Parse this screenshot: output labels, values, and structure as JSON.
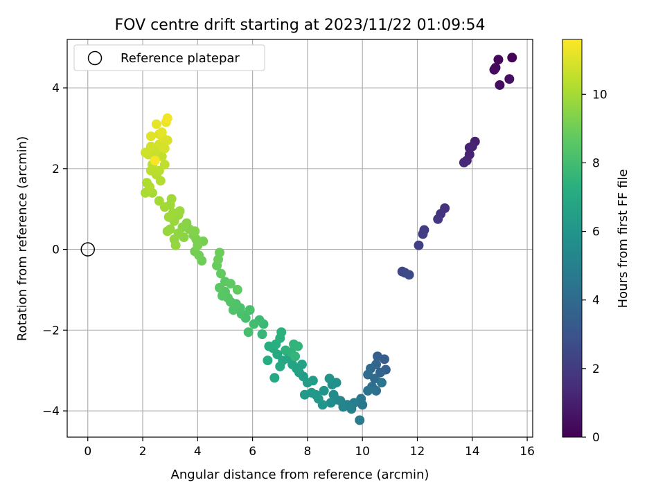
{
  "chart_data": {
    "type": "scatter",
    "title": "FOV centre drift starting at 2023/11/22 01:09:54",
    "xlabel": "Angular distance from reference (arcmin)",
    "ylabel": "Rotation from reference (arcmin)",
    "xlim": [
      -0.75,
      16.2
    ],
    "ylim": [
      -4.65,
      5.2
    ],
    "xticks": [
      0,
      2,
      4,
      6,
      8,
      10,
      12,
      14,
      16
    ],
    "yticks": [
      -4,
      -2,
      0,
      2,
      4
    ],
    "xtick_labels": [
      "0",
      "2",
      "4",
      "6",
      "8",
      "10",
      "12",
      "14",
      "16"
    ],
    "ytick_labels": [
      "−4",
      "−2",
      "0",
      "2",
      "4"
    ],
    "grid": true,
    "legend": {
      "position": "top-left",
      "entries": [
        "Reference platepar"
      ]
    },
    "reference_point": {
      "x": 0,
      "y": 0,
      "label": "Reference platepar"
    },
    "colorbar": {
      "label": "Hours from first FF file",
      "colormap": "viridis",
      "range": [
        0,
        11.6
      ],
      "ticks": [
        0,
        2,
        4,
        6,
        8,
        10
      ],
      "tick_labels": [
        "0",
        "2",
        "4",
        "6",
        "8",
        "10"
      ]
    },
    "points": [
      {
        "x": 15.45,
        "y": 4.75,
        "c": 0.1
      },
      {
        "x": 14.95,
        "y": 4.7,
        "c": 0.2
      },
      {
        "x": 14.85,
        "y": 4.5,
        "c": 0.3
      },
      {
        "x": 14.8,
        "y": 4.45,
        "c": 0.35
      },
      {
        "x": 15.0,
        "y": 4.07,
        "c": 0.4
      },
      {
        "x": 15.35,
        "y": 4.22,
        "c": 0.5
      },
      {
        "x": 14.1,
        "y": 2.67,
        "c": 1.0
      },
      {
        "x": 13.9,
        "y": 2.52,
        "c": 1.1
      },
      {
        "x": 14.0,
        "y": 2.55,
        "c": 1.15
      },
      {
        "x": 13.9,
        "y": 2.35,
        "c": 1.2
      },
      {
        "x": 13.8,
        "y": 2.2,
        "c": 1.25
      },
      {
        "x": 13.7,
        "y": 2.15,
        "c": 1.3
      },
      {
        "x": 13.0,
        "y": 1.02,
        "c": 1.6
      },
      {
        "x": 12.85,
        "y": 0.88,
        "c": 1.7
      },
      {
        "x": 12.75,
        "y": 0.75,
        "c": 1.8
      },
      {
        "x": 12.25,
        "y": 0.48,
        "c": 2.0
      },
      {
        "x": 12.2,
        "y": 0.38,
        "c": 2.1
      },
      {
        "x": 12.05,
        "y": 0.1,
        "c": 2.2
      },
      {
        "x": 11.45,
        "y": -0.55,
        "c": 2.4
      },
      {
        "x": 11.55,
        "y": -0.58,
        "c": 2.5
      },
      {
        "x": 11.7,
        "y": -0.63,
        "c": 2.6
      },
      {
        "x": 10.8,
        "y": -2.72,
        "c": 3.4
      },
      {
        "x": 10.55,
        "y": -2.65,
        "c": 3.5
      },
      {
        "x": 10.85,
        "y": -2.98,
        "c": 3.6
      },
      {
        "x": 10.65,
        "y": -3.05,
        "c": 3.7
      },
      {
        "x": 10.5,
        "y": -2.85,
        "c": 3.8
      },
      {
        "x": 10.3,
        "y": -2.95,
        "c": 3.9
      },
      {
        "x": 10.45,
        "y": -3.2,
        "c": 4.0
      },
      {
        "x": 10.2,
        "y": -3.1,
        "c": 4.1
      },
      {
        "x": 10.35,
        "y": -3.4,
        "c": 4.2
      },
      {
        "x": 10.5,
        "y": -3.5,
        "c": 4.3
      },
      {
        "x": 10.2,
        "y": -3.5,
        "c": 4.4
      },
      {
        "x": 10.7,
        "y": -3.3,
        "c": 4.5
      },
      {
        "x": 9.95,
        "y": -3.7,
        "c": 4.6
      },
      {
        "x": 10.0,
        "y": -3.85,
        "c": 4.7
      },
      {
        "x": 9.9,
        "y": -4.23,
        "c": 4.8
      },
      {
        "x": 9.7,
        "y": -3.8,
        "c": 4.9
      },
      {
        "x": 9.6,
        "y": -3.95,
        "c": 5.0
      },
      {
        "x": 9.45,
        "y": -3.85,
        "c": 5.1
      },
      {
        "x": 9.3,
        "y": -3.9,
        "c": 5.2
      },
      {
        "x": 9.2,
        "y": -3.75,
        "c": 5.3
      },
      {
        "x": 9.05,
        "y": -3.72,
        "c": 5.4
      },
      {
        "x": 8.95,
        "y": -3.6,
        "c": 5.5
      },
      {
        "x": 8.85,
        "y": -3.8,
        "c": 5.6
      },
      {
        "x": 8.9,
        "y": -3.35,
        "c": 5.7
      },
      {
        "x": 9.05,
        "y": -3.3,
        "c": 5.8
      },
      {
        "x": 8.8,
        "y": -3.2,
        "c": 5.9
      },
      {
        "x": 8.6,
        "y": -3.5,
        "c": 6.0
      },
      {
        "x": 8.55,
        "y": -3.85,
        "c": 6.05
      },
      {
        "x": 8.4,
        "y": -3.7,
        "c": 6.1
      },
      {
        "x": 8.3,
        "y": -3.6,
        "c": 6.15
      },
      {
        "x": 8.15,
        "y": -3.55,
        "c": 6.2
      },
      {
        "x": 7.9,
        "y": -3.6,
        "c": 6.25
      },
      {
        "x": 8.2,
        "y": -3.25,
        "c": 6.3
      },
      {
        "x": 8.0,
        "y": -3.3,
        "c": 6.35
      },
      {
        "x": 7.85,
        "y": -3.15,
        "c": 6.4
      },
      {
        "x": 7.7,
        "y": -3.05,
        "c": 6.5
      },
      {
        "x": 7.8,
        "y": -2.85,
        "c": 6.6
      },
      {
        "x": 7.6,
        "y": -2.95,
        "c": 6.65
      },
      {
        "x": 7.45,
        "y": -2.85,
        "c": 6.7
      },
      {
        "x": 7.3,
        "y": -2.7,
        "c": 6.8
      },
      {
        "x": 7.1,
        "y": -2.75,
        "c": 6.85
      },
      {
        "x": 6.8,
        "y": -3.18,
        "c": 6.9
      },
      {
        "x": 7.0,
        "y": -2.9,
        "c": 7.0
      },
      {
        "x": 6.9,
        "y": -2.6,
        "c": 7.05
      },
      {
        "x": 6.75,
        "y": -2.45,
        "c": 7.1
      },
      {
        "x": 6.55,
        "y": -2.75,
        "c": 7.15
      },
      {
        "x": 6.6,
        "y": -2.4,
        "c": 7.2
      },
      {
        "x": 6.85,
        "y": -2.35,
        "c": 7.25
      },
      {
        "x": 7.0,
        "y": -2.2,
        "c": 7.3
      },
      {
        "x": 7.05,
        "y": -2.05,
        "c": 7.35
      },
      {
        "x": 7.2,
        "y": -2.5,
        "c": 7.4
      },
      {
        "x": 7.4,
        "y": -2.55,
        "c": 7.45
      },
      {
        "x": 7.5,
        "y": -2.35,
        "c": 7.5
      },
      {
        "x": 7.65,
        "y": -2.4,
        "c": 7.55
      },
      {
        "x": 7.55,
        "y": -2.65,
        "c": 7.6
      },
      {
        "x": 6.35,
        "y": -2.1,
        "c": 7.7
      },
      {
        "x": 6.4,
        "y": -1.85,
        "c": 7.8
      },
      {
        "x": 6.25,
        "y": -1.75,
        "c": 7.9
      },
      {
        "x": 6.05,
        "y": -1.85,
        "c": 8.0
      },
      {
        "x": 5.85,
        "y": -2.05,
        "c": 8.05
      },
      {
        "x": 5.75,
        "y": -1.7,
        "c": 8.1
      },
      {
        "x": 5.6,
        "y": -1.6,
        "c": 8.15
      },
      {
        "x": 5.9,
        "y": -1.5,
        "c": 8.2
      },
      {
        "x": 5.55,
        "y": -1.45,
        "c": 8.25
      },
      {
        "x": 5.4,
        "y": -1.35,
        "c": 8.3
      },
      {
        "x": 5.3,
        "y": -1.5,
        "c": 8.35
      },
      {
        "x": 5.2,
        "y": -1.3,
        "c": 8.4
      },
      {
        "x": 5.1,
        "y": -1.2,
        "c": 8.45
      },
      {
        "x": 5.0,
        "y": -1.05,
        "c": 8.5
      },
      {
        "x": 4.9,
        "y": -1.15,
        "c": 8.55
      },
      {
        "x": 4.8,
        "y": -0.95,
        "c": 8.6
      },
      {
        "x": 5.0,
        "y": -0.8,
        "c": 8.65
      },
      {
        "x": 5.2,
        "y": -0.85,
        "c": 8.7
      },
      {
        "x": 5.45,
        "y": -1.0,
        "c": 8.75
      },
      {
        "x": 4.85,
        "y": -0.6,
        "c": 8.8
      },
      {
        "x": 4.7,
        "y": -0.4,
        "c": 8.85
      },
      {
        "x": 4.75,
        "y": -0.25,
        "c": 8.9
      },
      {
        "x": 4.8,
        "y": -0.08,
        "c": 8.95
      },
      {
        "x": 4.15,
        "y": -0.28,
        "c": 9.0
      },
      {
        "x": 4.05,
        "y": -0.15,
        "c": 9.05
      },
      {
        "x": 3.9,
        "y": -0.05,
        "c": 9.1
      },
      {
        "x": 4.2,
        "y": 0.2,
        "c": 9.15
      },
      {
        "x": 4.0,
        "y": 0.1,
        "c": 9.2
      },
      {
        "x": 3.95,
        "y": 0.25,
        "c": 9.25
      },
      {
        "x": 3.85,
        "y": 0.35,
        "c": 9.3
      },
      {
        "x": 3.9,
        "y": 0.45,
        "c": 9.35
      },
      {
        "x": 3.7,
        "y": 0.5,
        "c": 9.4
      },
      {
        "x": 3.6,
        "y": 0.65,
        "c": 9.45
      },
      {
        "x": 3.45,
        "y": 0.55,
        "c": 9.5
      },
      {
        "x": 3.5,
        "y": 0.3,
        "c": 9.55
      },
      {
        "x": 3.3,
        "y": 0.4,
        "c": 9.6
      },
      {
        "x": 3.15,
        "y": 0.25,
        "c": 9.65
      },
      {
        "x": 3.2,
        "y": 0.1,
        "c": 9.7
      },
      {
        "x": 3.0,
        "y": 0.5,
        "c": 9.72
      },
      {
        "x": 2.9,
        "y": 0.45,
        "c": 9.75
      },
      {
        "x": 3.15,
        "y": 0.7,
        "c": 9.78
      },
      {
        "x": 3.3,
        "y": 0.85,
        "c": 9.8
      },
      {
        "x": 3.35,
        "y": 0.95,
        "c": 9.82
      },
      {
        "x": 3.1,
        "y": 0.9,
        "c": 9.85
      },
      {
        "x": 2.95,
        "y": 0.8,
        "c": 9.88
      },
      {
        "x": 3.0,
        "y": 1.1,
        "c": 9.9
      },
      {
        "x": 3.05,
        "y": 1.25,
        "c": 9.92
      },
      {
        "x": 2.8,
        "y": 1.05,
        "c": 9.95
      },
      {
        "x": 2.6,
        "y": 1.2,
        "c": 9.98
      },
      {
        "x": 2.35,
        "y": 1.4,
        "c": 10.0
      },
      {
        "x": 2.2,
        "y": 1.45,
        "c": 10.05
      },
      {
        "x": 2.1,
        "y": 1.4,
        "c": 10.1
      },
      {
        "x": 2.15,
        "y": 1.65,
        "c": 10.15
      },
      {
        "x": 2.25,
        "y": 1.55,
        "c": 10.2
      },
      {
        "x": 2.65,
        "y": 1.7,
        "c": 10.25
      },
      {
        "x": 2.5,
        "y": 1.85,
        "c": 10.3
      },
      {
        "x": 2.6,
        "y": 1.95,
        "c": 10.35
      },
      {
        "x": 2.3,
        "y": 1.95,
        "c": 10.4
      },
      {
        "x": 2.35,
        "y": 2.1,
        "c": 10.45
      },
      {
        "x": 2.8,
        "y": 2.1,
        "c": 10.5
      },
      {
        "x": 2.7,
        "y": 2.3,
        "c": 10.55
      },
      {
        "x": 2.4,
        "y": 2.3,
        "c": 10.6
      },
      {
        "x": 2.5,
        "y": 2.45,
        "c": 10.65
      },
      {
        "x": 2.2,
        "y": 2.35,
        "c": 10.7
      },
      {
        "x": 2.1,
        "y": 2.4,
        "c": 10.75
      },
      {
        "x": 2.3,
        "y": 2.55,
        "c": 10.8
      },
      {
        "x": 2.6,
        "y": 2.6,
        "c": 10.85
      },
      {
        "x": 2.8,
        "y": 2.5,
        "c": 10.9
      },
      {
        "x": 2.9,
        "y": 2.7,
        "c": 10.95
      },
      {
        "x": 2.75,
        "y": 2.75,
        "c": 11.0
      },
      {
        "x": 2.6,
        "y": 2.85,
        "c": 11.05
      },
      {
        "x": 2.3,
        "y": 2.8,
        "c": 11.1
      },
      {
        "x": 2.7,
        "y": 2.9,
        "c": 11.15
      },
      {
        "x": 2.5,
        "y": 3.1,
        "c": 11.2
      },
      {
        "x": 2.85,
        "y": 3.15,
        "c": 11.3
      },
      {
        "x": 2.9,
        "y": 3.25,
        "c": 11.4
      },
      {
        "x": 2.45,
        "y": 2.2,
        "c": 11.5
      }
    ]
  }
}
